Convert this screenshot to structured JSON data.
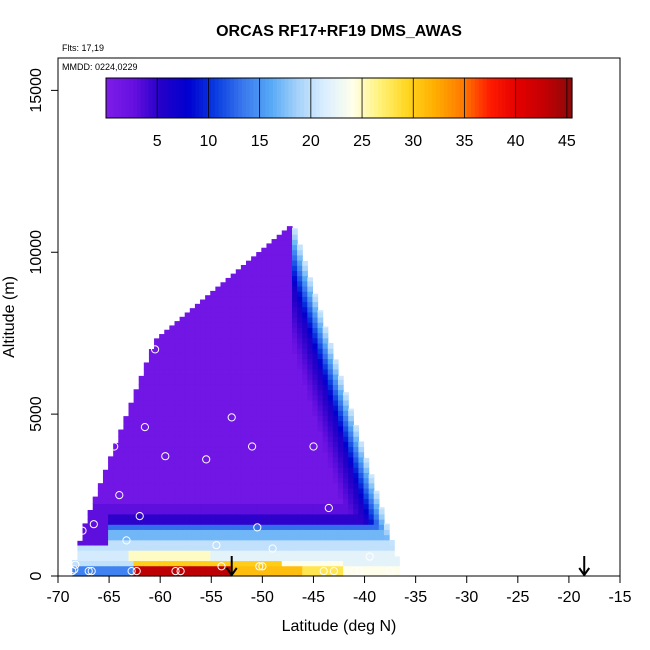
{
  "chart_data": {
    "type": "heatmap",
    "title": "ORCAS RF17+RF19 DMS_AWAS",
    "xlabel": "Latitude (deg N)",
    "ylabel": "Altitude (m)",
    "xlim": [
      -70,
      -15
    ],
    "ylim": [
      0,
      16000
    ],
    "x_ticks": [
      -70,
      -65,
      -60,
      -55,
      -50,
      -45,
      -40,
      -35,
      -30,
      -25,
      -20,
      -15
    ],
    "x_tick_labels": [
      "-70",
      "-65",
      "-60",
      "-55",
      "-50",
      "-45",
      "-40",
      "-35",
      "-30",
      "-25",
      "-20",
      "-15"
    ],
    "y_ticks": [
      0,
      5000,
      10000,
      15000
    ],
    "y_tick_labels": [
      "0",
      "5000",
      "10000",
      "15000"
    ],
    "flights_label": "Flts: 17,19",
    "dates_label": "MMDD: 0224,0229",
    "colorbar": {
      "range": [
        0,
        45.5
      ],
      "ticks": [
        5,
        10,
        15,
        20,
        25,
        30,
        35,
        40,
        45
      ],
      "tick_labels": [
        "5",
        "10",
        "15",
        "20",
        "25",
        "30",
        "35",
        "40",
        "45"
      ],
      "colors": [
        "#7e1de8",
        "#6610e0",
        "#2400c8",
        "#0000d0",
        "#0a3ce0",
        "#3a78ee",
        "#55a8f6",
        "#a6d2fa",
        "#dcefff",
        "#ffffea",
        "#fff27a",
        "#ffd51e",
        "#ffae00",
        "#ff7a00",
        "#ff1c00",
        "#e40000",
        "#c20004",
        "#8a0a0a"
      ]
    },
    "grid": false,
    "legend": "none",
    "samples": [
      {
        "lat": -68.3,
        "alt": 350
      },
      {
        "lat": -68.4,
        "alt": 200
      },
      {
        "lat": -68.6,
        "alt": 150
      },
      {
        "lat": -67.0,
        "alt": 150
      },
      {
        "lat": -66.7,
        "alt": 150
      },
      {
        "lat": -66.5,
        "alt": 1600
      },
      {
        "lat": -67.6,
        "alt": 1400
      },
      {
        "lat": -64.5,
        "alt": 4000
      },
      {
        "lat": -64.0,
        "alt": 2500
      },
      {
        "lat": -63.3,
        "alt": 1100
      },
      {
        "lat": -62.8,
        "alt": 150
      },
      {
        "lat": -62.3,
        "alt": 150
      },
      {
        "lat": -62.0,
        "alt": 1850
      },
      {
        "lat": -61.5,
        "alt": 4600
      },
      {
        "lat": -60.5,
        "alt": 7000
      },
      {
        "lat": -59.5,
        "alt": 3700
      },
      {
        "lat": -58.5,
        "alt": 150
      },
      {
        "lat": -58.0,
        "alt": 150
      },
      {
        "lat": -55.5,
        "alt": 3600
      },
      {
        "lat": -54.5,
        "alt": 950
      },
      {
        "lat": -54.0,
        "alt": 300
      },
      {
        "lat": -53.0,
        "alt": 4900
      },
      {
        "lat": -51.0,
        "alt": 4000
      },
      {
        "lat": -50.5,
        "alt": 1500
      },
      {
        "lat": -50.3,
        "alt": 300
      },
      {
        "lat": -50.0,
        "alt": 300
      },
      {
        "lat": -49.0,
        "alt": 850
      },
      {
        "lat": -45.0,
        "alt": 4000
      },
      {
        "lat": -44.0,
        "alt": 150
      },
      {
        "lat": -43.5,
        "alt": 2100
      },
      {
        "lat": -43.0,
        "alt": 150
      },
      {
        "lat": -41.0,
        "alt": 150
      },
      {
        "lat": -40.5,
        "alt": 150
      },
      {
        "lat": -39.5,
        "alt": 600
      },
      {
        "lat": -37.5,
        "alt": 150
      }
    ],
    "annotations": [
      {
        "type": "arrow-down",
        "lat": -53
      },
      {
        "type": "arrow-down",
        "lat": -18.5
      }
    ]
  }
}
